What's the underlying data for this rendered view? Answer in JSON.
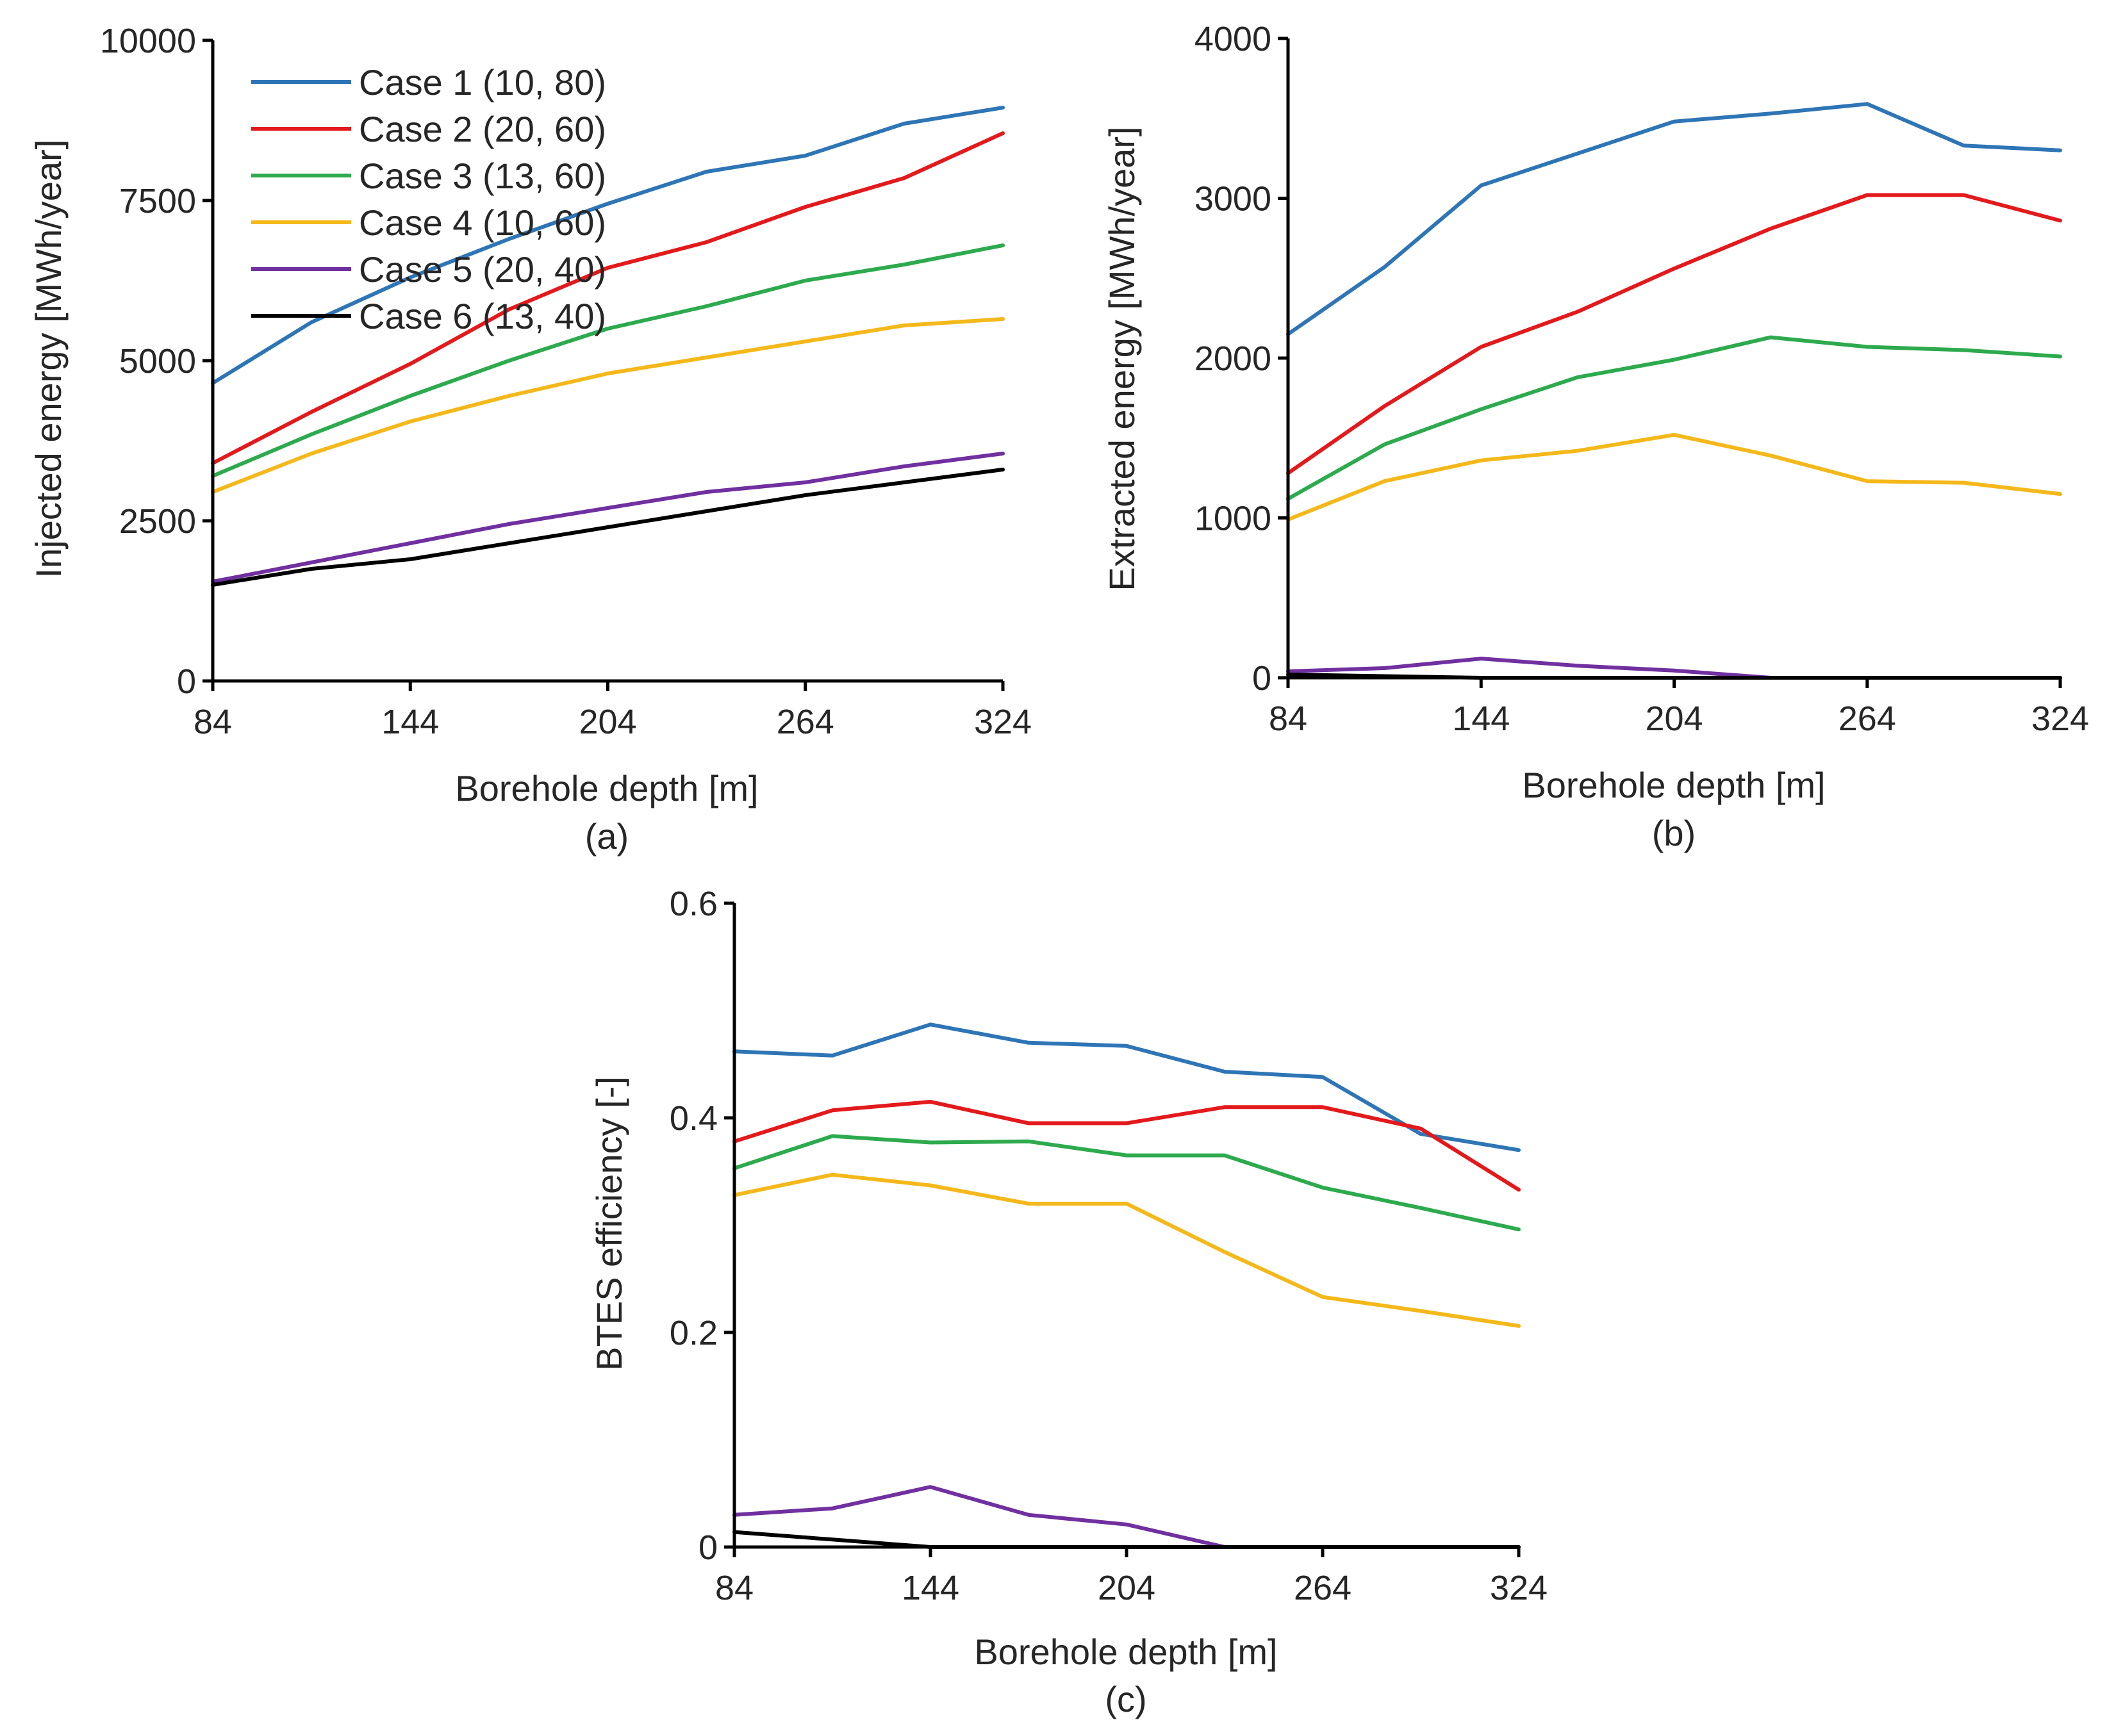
{
  "chart_data": [
    {
      "type": "line",
      "caption": "(a)",
      "xlabel": "Borehole depth [m]",
      "ylabel": "Injected energy [MWh/year]",
      "xlim": [
        84,
        324
      ],
      "ylim": [
        0,
        10000
      ],
      "xticks": [
        84,
        144,
        204,
        264,
        324
      ],
      "yticks": [
        0,
        2500,
        5000,
        7500,
        10000
      ],
      "legend_position": "top-left",
      "x": [
        84,
        114,
        144,
        174,
        204,
        234,
        264,
        294,
        324
      ],
      "series": [
        {
          "name": "Case 1 (10, 80)",
          "color": "#2E75B6",
          "values": [
            4650,
            5600,
            6300,
            6900,
            7450,
            7950,
            8200,
            8700,
            8950
          ]
        },
        {
          "name": "Case 2 (20, 60)",
          "color": "#E3191C",
          "values": [
            3400,
            4200,
            4950,
            5800,
            6450,
            6850,
            7400,
            7850,
            8550
          ]
        },
        {
          "name": "Case 3 (13, 60)",
          "color": "#2DAA4E",
          "values": [
            3200,
            3850,
            4450,
            5000,
            5500,
            5850,
            6250,
            6500,
            6800
          ]
        },
        {
          "name": "Case 4 (10, 60)",
          "color": "#F5B81A",
          "values": [
            2950,
            3550,
            4050,
            4450,
            4800,
            5050,
            5300,
            5550,
            5650
          ]
        },
        {
          "name": "Case 5 (20, 40)",
          "color": "#7030A0",
          "values": [
            1550,
            1850,
            2150,
            2450,
            2700,
            2950,
            3100,
            3350,
            3550
          ]
        },
        {
          "name": "Case 6 (13, 40)",
          "color": "#000000",
          "values": [
            1500,
            1750,
            1900,
            2150,
            2400,
            2650,
            2900,
            3100,
            3300
          ]
        }
      ]
    },
    {
      "type": "line",
      "caption": "(b)",
      "xlabel": "Borehole depth [m]",
      "ylabel": "Extracted energy [MWh/year]",
      "xlim": [
        84,
        324
      ],
      "ylim": [
        0,
        4000
      ],
      "xticks": [
        84,
        144,
        204,
        264,
        324
      ],
      "yticks": [
        0,
        1000,
        2000,
        3000,
        4000
      ],
      "x": [
        84,
        114,
        144,
        174,
        204,
        234,
        264,
        294,
        324
      ],
      "series": [
        {
          "name": "Case 1 (10, 80)",
          "color": "#2E75B6",
          "values": [
            2150,
            2570,
            3080,
            3280,
            3480,
            3530,
            3590,
            3330,
            3300
          ]
        },
        {
          "name": "Case 2 (20, 60)",
          "color": "#E3191C",
          "values": [
            1280,
            1700,
            2070,
            2290,
            2560,
            2810,
            3020,
            3020,
            2860
          ]
        },
        {
          "name": "Case 3 (13, 60)",
          "color": "#2DAA4E",
          "values": [
            1120,
            1460,
            1680,
            1880,
            1990,
            2130,
            2070,
            2050,
            2010
          ]
        },
        {
          "name": "Case 4 (10, 60)",
          "color": "#F5B81A",
          "values": [
            990,
            1230,
            1360,
            1420,
            1520,
            1390,
            1230,
            1220,
            1150
          ]
        },
        {
          "name": "Case 5 (20, 40)",
          "color": "#7030A0",
          "values": [
            40,
            60,
            120,
            75,
            45,
            0,
            0,
            0,
            0
          ]
        },
        {
          "name": "Case 6 (13, 40)",
          "color": "#000000",
          "values": [
            20,
            10,
            0,
            0,
            0,
            0,
            0,
            0,
            0
          ]
        }
      ]
    },
    {
      "type": "line",
      "caption": "(c)",
      "xlabel": "Borehole depth [m]",
      "ylabel": "BTES efficiency [-]",
      "xlim": [
        84,
        324
      ],
      "ylim": [
        0,
        0.6
      ],
      "xticks": [
        84,
        144,
        204,
        264,
        324
      ],
      "yticks": [
        0,
        0.2,
        0.4,
        0.6
      ],
      "ytick_labels": [
        "0",
        "0.2",
        "0.4",
        "0.6"
      ],
      "x": [
        84,
        114,
        144,
        174,
        204,
        234,
        264,
        294,
        324
      ],
      "series": [
        {
          "name": "Case 1 (10, 80)",
          "color": "#2E75B6",
          "values": [
            0.462,
            0.458,
            0.487,
            0.47,
            0.467,
            0.443,
            0.438,
            0.385,
            0.37
          ]
        },
        {
          "name": "Case 2 (20, 60)",
          "color": "#E3191C",
          "values": [
            0.378,
            0.407,
            0.415,
            0.395,
            0.395,
            0.41,
            0.41,
            0.39,
            0.333
          ]
        },
        {
          "name": "Case 3 (13, 60)",
          "color": "#2DAA4E",
          "values": [
            0.353,
            0.383,
            0.377,
            0.378,
            0.365,
            0.365,
            0.335,
            0.316,
            0.296
          ]
        },
        {
          "name": "Case 4 (10, 60)",
          "color": "#F5B81A",
          "values": [
            0.328,
            0.347,
            0.337,
            0.32,
            0.32,
            0.275,
            0.233,
            0.22,
            0.206
          ]
        },
        {
          "name": "Case 5 (20, 40)",
          "color": "#7030A0",
          "values": [
            0.03,
            0.036,
            0.056,
            0.03,
            0.021,
            0,
            0,
            0,
            0
          ]
        },
        {
          "name": "Case 6 (13, 40)",
          "color": "#000000",
          "values": [
            0.014,
            0.007,
            0,
            0,
            0,
            0,
            0,
            0,
            0
          ]
        }
      ]
    }
  ]
}
